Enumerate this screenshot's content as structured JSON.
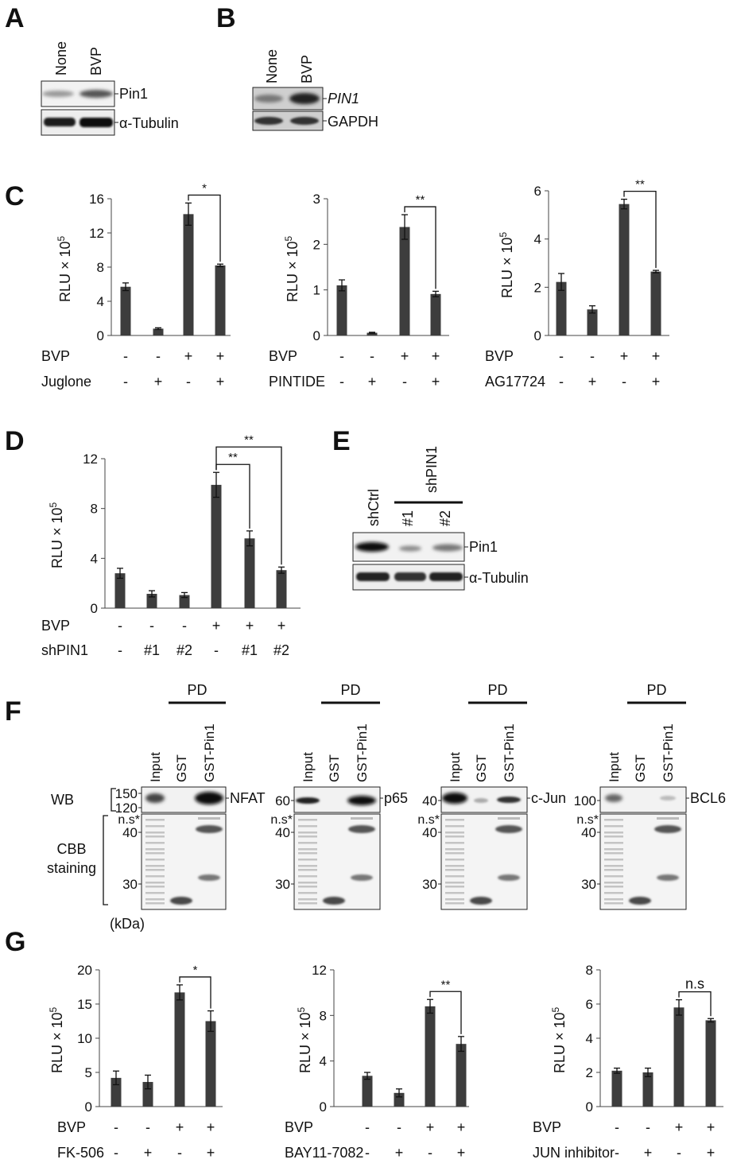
{
  "panels": {
    "A": {
      "label": "A",
      "lanes": [
        "None",
        "BVP"
      ],
      "bands": [
        "Pin1",
        "α-Tubulin"
      ]
    },
    "B": {
      "label": "B",
      "lanes": [
        "None",
        "BVP"
      ],
      "bands": [
        "PIN1",
        "GAPDH"
      ]
    },
    "C": {
      "label": "C"
    },
    "D": {
      "label": "D"
    },
    "E": {
      "label": "E",
      "lanes": [
        "shCtrl",
        "#1",
        "#2"
      ],
      "group_label": "shPIN1",
      "bands": [
        "Pin1",
        "α-Tubulin"
      ]
    },
    "F": {
      "label": "F",
      "pd_label": "PD",
      "lanes": [
        "Input",
        "GST",
        "GST-Pin1"
      ],
      "wb_label": "WB",
      "ns_label": "n.s",
      "cbb_label_1": "CBB",
      "cbb_label_2": "staining",
      "kda_label": "(kDa)",
      "blots": [
        {
          "target": "NFAT",
          "wb_markers": [
            "150",
            "120"
          ],
          "cbb_markers": [
            "40",
            "30"
          ]
        },
        {
          "target": "p65",
          "wb_markers": [
            "60"
          ],
          "cbb_markers": [
            "40",
            "30"
          ]
        },
        {
          "target": "c-Jun",
          "wb_markers": [
            "40"
          ],
          "cbb_markers": [
            "40",
            "30"
          ]
        },
        {
          "target": "BCL6",
          "wb_markers": [
            "100"
          ],
          "cbb_markers": [
            "40",
            "30"
          ]
        }
      ]
    },
    "G": {
      "label": "G"
    }
  },
  "chart_data": [
    {
      "panel": "C",
      "type": "bar",
      "ylabel": "RLU × 10",
      "ylabel_exp": "5",
      "ylim": [
        0,
        16
      ],
      "yticks": [
        0,
        4,
        8,
        12,
        16
      ],
      "values": [
        5.7,
        0.8,
        14.2,
        8.2
      ],
      "errors": [
        0.45,
        0.1,
        1.3,
        0.15
      ],
      "row_labels": [
        "BVP",
        "Juglone"
      ],
      "rows": [
        [
          "-",
          "-",
          "+",
          "+"
        ],
        [
          "-",
          "+",
          "-",
          "+"
        ]
      ],
      "significance": [
        {
          "from": 2,
          "to": 3,
          "label": "*"
        }
      ]
    },
    {
      "panel": "C",
      "type": "bar",
      "ylabel": "RLU × 10",
      "ylabel_exp": "5",
      "ylim": [
        0,
        3
      ],
      "yticks": [
        0,
        1,
        2,
        3
      ],
      "values": [
        1.1,
        0.06,
        2.38,
        0.91
      ],
      "errors": [
        0.12,
        0.01,
        0.27,
        0.06
      ],
      "row_labels": [
        "BVP",
        "PINTIDE"
      ],
      "rows": [
        [
          "-",
          "-",
          "+",
          "+"
        ],
        [
          "-",
          "+",
          "-",
          "+"
        ]
      ],
      "significance": [
        {
          "from": 2,
          "to": 3,
          "label": "**"
        }
      ]
    },
    {
      "panel": "C",
      "type": "bar",
      "ylabel": "RLU × 10",
      "ylabel_exp": "5",
      "ylim": [
        0,
        6
      ],
      "yticks": [
        0,
        2,
        4,
        6
      ],
      "values": [
        2.22,
        1.08,
        5.45,
        2.65
      ],
      "errors": [
        0.35,
        0.15,
        0.2,
        0.05
      ],
      "row_labels": [
        "BVP",
        "AG17724"
      ],
      "rows": [
        [
          "-",
          "-",
          "+",
          "+"
        ],
        [
          "-",
          "+",
          "-",
          "+"
        ]
      ],
      "significance": [
        {
          "from": 2,
          "to": 3,
          "label": "**"
        }
      ]
    },
    {
      "panel": "D",
      "type": "bar",
      "ylabel": "RLU × 10",
      "ylabel_exp": "5",
      "ylim": [
        0,
        12
      ],
      "yticks": [
        0,
        4,
        8,
        12
      ],
      "values": [
        2.8,
        1.15,
        1.05,
        9.9,
        5.6,
        3.05
      ],
      "errors": [
        0.4,
        0.25,
        0.2,
        1.0,
        0.6,
        0.25
      ],
      "row_labels": [
        "BVP",
        "shPIN1"
      ],
      "rows": [
        [
          "-",
          "-",
          "-",
          "+",
          "+",
          "+"
        ],
        [
          "-",
          "#1",
          "#2",
          "-",
          "#1",
          "#2"
        ]
      ],
      "significance": [
        {
          "from": 3,
          "to": 4,
          "label": "**"
        },
        {
          "from": 3,
          "to": 5,
          "label": "**"
        }
      ]
    },
    {
      "panel": "G",
      "type": "bar",
      "ylabel": "RLU × 10",
      "ylabel_exp": "5",
      "ylim": [
        0,
        20
      ],
      "yticks": [
        0,
        5,
        10,
        15,
        20
      ],
      "values": [
        4.2,
        3.6,
        16.7,
        12.5
      ],
      "errors": [
        1.0,
        1.0,
        1.1,
        1.5
      ],
      "row_labels": [
        "BVP",
        "FK-506"
      ],
      "rows": [
        [
          "-",
          "-",
          "+",
          "+"
        ],
        [
          "-",
          "+",
          "-",
          "+"
        ]
      ],
      "significance": [
        {
          "from": 2,
          "to": 3,
          "label": "*"
        }
      ]
    },
    {
      "panel": "G",
      "type": "bar",
      "ylabel": "RLU × 10",
      "ylabel_exp": "5",
      "ylim": [
        0,
        12
      ],
      "yticks": [
        0,
        4,
        8,
        12
      ],
      "values": [
        2.7,
        1.2,
        8.8,
        5.5
      ],
      "errors": [
        0.3,
        0.35,
        0.6,
        0.65
      ],
      "row_labels": [
        "BVP",
        "BAY11-7082"
      ],
      "rows": [
        [
          "-",
          "-",
          "+",
          "+"
        ],
        [
          "-",
          "+",
          "-",
          "+"
        ]
      ],
      "significance": [
        {
          "from": 2,
          "to": 3,
          "label": "**"
        }
      ]
    },
    {
      "panel": "G",
      "type": "bar",
      "ylabel": "RLU × 10",
      "ylabel_exp": "5",
      "ylim": [
        0,
        8
      ],
      "yticks": [
        0,
        2,
        4,
        6,
        8
      ],
      "values": [
        2.1,
        2.0,
        5.8,
        5.05
      ],
      "errors": [
        0.15,
        0.25,
        0.45,
        0.1
      ],
      "row_labels": [
        "BVP",
        "JUN inhibitor"
      ],
      "rows": [
        [
          "-",
          "-",
          "+",
          "+"
        ],
        [
          "-",
          "+",
          "-",
          "+"
        ]
      ],
      "significance": [
        {
          "from": 2,
          "to": 3,
          "label": "n.s"
        }
      ]
    }
  ],
  "colors": {
    "bar": "#3d3d3d",
    "text": "#111111",
    "blot_bg": "#f2f2f2"
  }
}
